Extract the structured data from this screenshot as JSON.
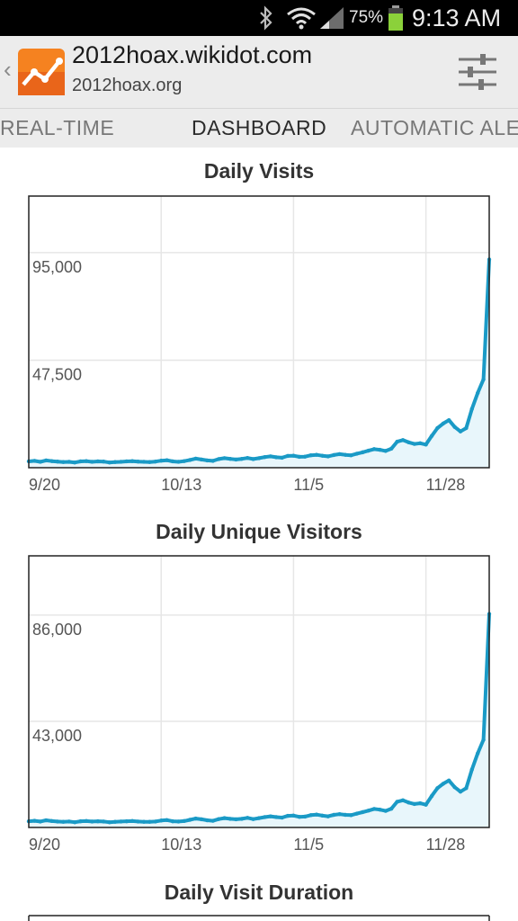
{
  "status_bar": {
    "battery": "75%",
    "time": "9:13 AM",
    "icons": [
      "bluetooth-icon",
      "wifi-icon",
      "signal-icon",
      "battery-icon"
    ]
  },
  "app_bar": {
    "site_name": "2012hoax.wikidot.com",
    "site_url": "2012hoax.org",
    "icons": [
      "back-chevron-icon",
      "analytics-logo-icon",
      "settings-sliders-icon"
    ]
  },
  "tabs": [
    {
      "label": "REAL-TIME",
      "active": false
    },
    {
      "label": "DASHBOARD",
      "active": true
    },
    {
      "label": "AUTOMATIC ALERTS",
      "active": false
    }
  ],
  "colors": {
    "line": "#1a9ac6",
    "fill": "#e8f6fb",
    "battery": "#8bd13a",
    "logo_orange": "#f58220"
  },
  "charts": [
    {
      "title": "Daily Visits",
      "chart_data": {
        "type": "area",
        "x_ticks": [
          "9/20",
          "10/13",
          "11/5",
          "11/28"
        ],
        "y_ticks": [
          "47,500",
          "95,000"
        ],
        "ylim": [
          0,
          120000
        ],
        "grid": true,
        "start": "9/20",
        "points": [
          [
            0,
            2800
          ],
          [
            1,
            3000
          ],
          [
            2,
            2600
          ],
          [
            3,
            3200
          ],
          [
            4,
            2900
          ],
          [
            5,
            2700
          ],
          [
            6,
            2500
          ],
          [
            7,
            2600
          ],
          [
            8,
            2300
          ],
          [
            9,
            2800
          ],
          [
            10,
            2900
          ],
          [
            11,
            2600
          ],
          [
            12,
            2800
          ],
          [
            13,
            2700
          ],
          [
            14,
            2300
          ],
          [
            15,
            2500
          ],
          [
            16,
            2600
          ],
          [
            17,
            2800
          ],
          [
            18,
            2900
          ],
          [
            19,
            2700
          ],
          [
            20,
            2600
          ],
          [
            21,
            2500
          ],
          [
            22,
            2700
          ],
          [
            23,
            3100
          ],
          [
            24,
            3300
          ],
          [
            25,
            2800
          ],
          [
            26,
            2600
          ],
          [
            27,
            2900
          ],
          [
            28,
            3400
          ],
          [
            29,
            4000
          ],
          [
            30,
            3600
          ],
          [
            31,
            3200
          ],
          [
            32,
            3000
          ],
          [
            33,
            3800
          ],
          [
            34,
            4200
          ],
          [
            35,
            3900
          ],
          [
            36,
            3600
          ],
          [
            37,
            3900
          ],
          [
            38,
            4300
          ],
          [
            39,
            3800
          ],
          [
            40,
            4200
          ],
          [
            41,
            4700
          ],
          [
            42,
            5000
          ],
          [
            43,
            4600
          ],
          [
            44,
            4400
          ],
          [
            45,
            5200
          ],
          [
            46,
            5300
          ],
          [
            47,
            4800
          ],
          [
            48,
            4900
          ],
          [
            49,
            5500
          ],
          [
            50,
            5700
          ],
          [
            51,
            5300
          ],
          [
            52,
            5000
          ],
          [
            53,
            5600
          ],
          [
            54,
            6000
          ],
          [
            55,
            5700
          ],
          [
            56,
            5500
          ],
          [
            57,
            6200
          ],
          [
            58,
            6800
          ],
          [
            59,
            7500
          ],
          [
            60,
            8200
          ],
          [
            61,
            7900
          ],
          [
            62,
            7400
          ],
          [
            63,
            8400
          ],
          [
            64,
            11500
          ],
          [
            65,
            12200
          ],
          [
            66,
            11200
          ],
          [
            67,
            10500
          ],
          [
            68,
            10800
          ],
          [
            69,
            10200
          ],
          [
            70,
            14000
          ],
          [
            71,
            17500
          ],
          [
            72,
            19500
          ],
          [
            73,
            21000
          ],
          [
            74,
            18000
          ],
          [
            75,
            16000
          ],
          [
            76,
            17500
          ],
          [
            77,
            26000
          ],
          [
            78,
            33000
          ],
          [
            79,
            39000
          ],
          [
            80,
            92000
          ]
        ]
      }
    },
    {
      "title": "Daily Unique Visitors",
      "chart_data": {
        "type": "area",
        "x_ticks": [
          "9/20",
          "10/13",
          "11/5",
          "11/28"
        ],
        "y_ticks": [
          "43,000",
          "86,000"
        ],
        "ylim": [
          0,
          110000
        ],
        "grid": true,
        "start": "9/20",
        "points": [
          [
            0,
            2500
          ],
          [
            1,
            2700
          ],
          [
            2,
            2400
          ],
          [
            3,
            2900
          ],
          [
            4,
            2600
          ],
          [
            5,
            2400
          ],
          [
            6,
            2300
          ],
          [
            7,
            2400
          ],
          [
            8,
            2100
          ],
          [
            9,
            2500
          ],
          [
            10,
            2600
          ],
          [
            11,
            2400
          ],
          [
            12,
            2500
          ],
          [
            13,
            2400
          ],
          [
            14,
            2100
          ],
          [
            15,
            2300
          ],
          [
            16,
            2400
          ],
          [
            17,
            2500
          ],
          [
            18,
            2600
          ],
          [
            19,
            2400
          ],
          [
            20,
            2300
          ],
          [
            21,
            2300
          ],
          [
            22,
            2400
          ],
          [
            23,
            2800
          ],
          [
            24,
            3000
          ],
          [
            25,
            2500
          ],
          [
            26,
            2400
          ],
          [
            27,
            2600
          ],
          [
            28,
            3100
          ],
          [
            29,
            3600
          ],
          [
            30,
            3300
          ],
          [
            31,
            2900
          ],
          [
            32,
            2700
          ],
          [
            33,
            3400
          ],
          [
            34,
            3800
          ],
          [
            35,
            3500
          ],
          [
            36,
            3300
          ],
          [
            37,
            3500
          ],
          [
            38,
            3900
          ],
          [
            39,
            3400
          ],
          [
            40,
            3800
          ],
          [
            41,
            4200
          ],
          [
            42,
            4500
          ],
          [
            43,
            4200
          ],
          [
            44,
            4000
          ],
          [
            45,
            4700
          ],
          [
            46,
            4800
          ],
          [
            47,
            4300
          ],
          [
            48,
            4400
          ],
          [
            49,
            5000
          ],
          [
            50,
            5200
          ],
          [
            51,
            4800
          ],
          [
            52,
            4500
          ],
          [
            53,
            5100
          ],
          [
            54,
            5400
          ],
          [
            55,
            5100
          ],
          [
            56,
            5000
          ],
          [
            57,
            5600
          ],
          [
            58,
            6200
          ],
          [
            59,
            6800
          ],
          [
            60,
            7500
          ],
          [
            61,
            7200
          ],
          [
            62,
            6700
          ],
          [
            63,
            7600
          ],
          [
            64,
            10400
          ],
          [
            65,
            11000
          ],
          [
            66,
            10100
          ],
          [
            67,
            9500
          ],
          [
            68,
            9800
          ],
          [
            69,
            9200
          ],
          [
            70,
            12700
          ],
          [
            71,
            15900
          ],
          [
            72,
            17700
          ],
          [
            73,
            19000
          ],
          [
            74,
            16300
          ],
          [
            75,
            14500
          ],
          [
            76,
            15900
          ],
          [
            77,
            23500
          ],
          [
            78,
            30000
          ],
          [
            79,
            35500
          ],
          [
            80,
            86500
          ]
        ]
      }
    },
    {
      "title": "Daily Visit Duration"
    }
  ]
}
